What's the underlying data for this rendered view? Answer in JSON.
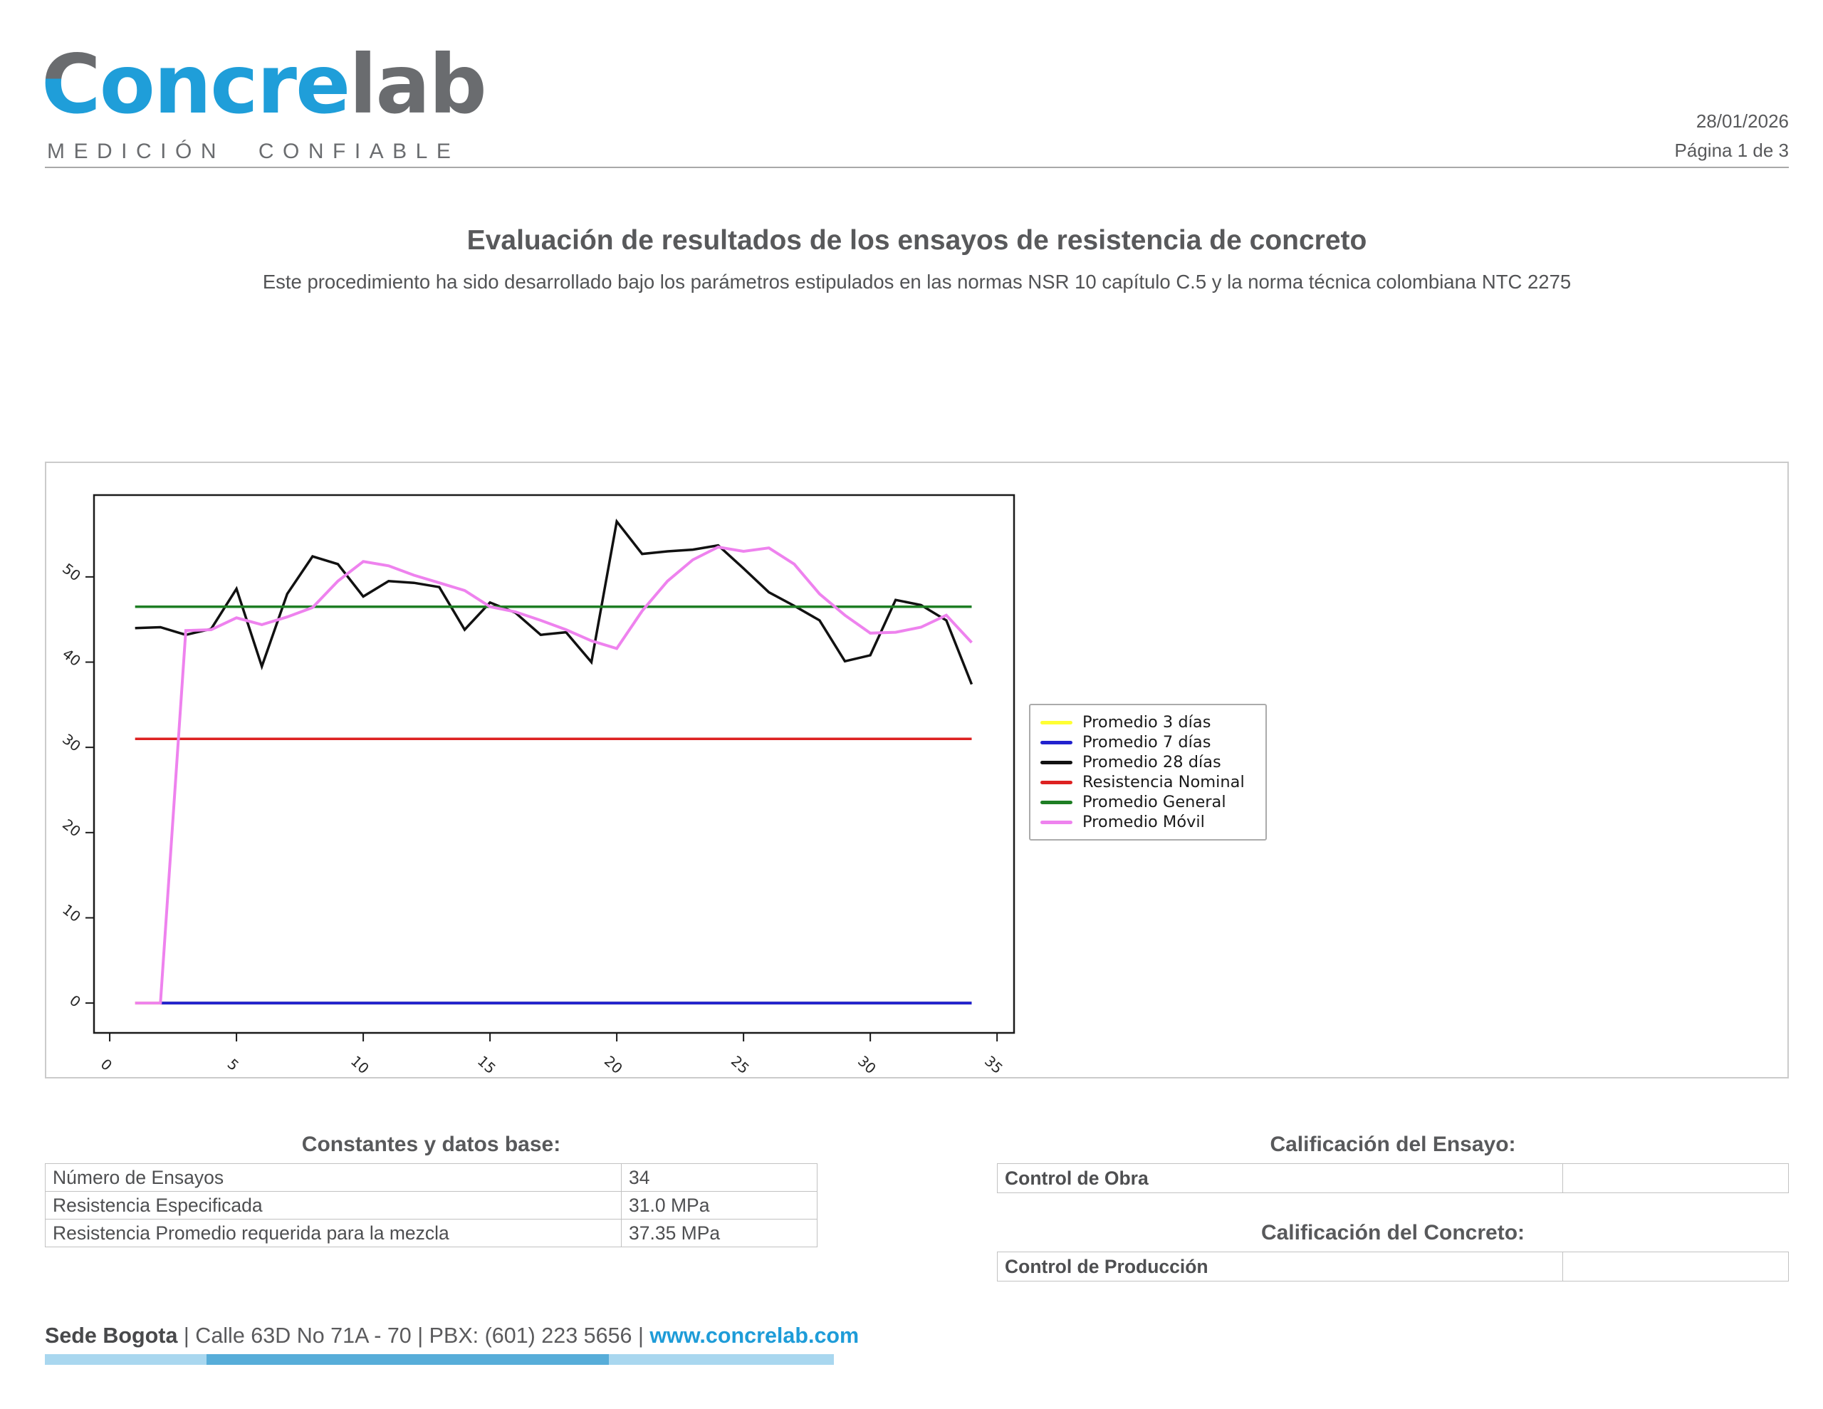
{
  "header": {
    "logo_c": "C",
    "logo_mid": "oncre",
    "logo_end": "lab",
    "tagline": "MEDICIÓN CONFIABLE",
    "date": "28/01/2026",
    "page": "Página 1 de 3"
  },
  "title": "Evaluación de resultados de los ensayos de resistencia de concreto",
  "subtitle": "Este procedimiento ha sido desarrollado bajo los parámetros estipulados en las normas NSR 10 capítulo C.5 y la norma técnica colombiana NTC 2275",
  "colors": {
    "brand_blue": "#1F9ED9",
    "brand_gray": "#6A6C6F",
    "link_blue": "#1E9CD8",
    "footer_bar_light": "#A9D7EF",
    "footer_bar_dark": "#57ADD9"
  },
  "chart_data": {
    "type": "line",
    "title": "",
    "xlabel": "",
    "ylabel": "",
    "grid": false,
    "legend_position": "outside-right",
    "xlim": [
      -0.62,
      35.67
    ],
    "ylim": [
      -3.5,
      59.6
    ],
    "x_ticks": [
      0,
      5,
      10,
      15,
      20,
      25,
      30,
      35
    ],
    "y_ticks": [
      0,
      10,
      20,
      30,
      40,
      50
    ],
    "series": [
      {
        "name": "Promedio 3 días",
        "color": "#FFFF33",
        "width": 4,
        "const": 0,
        "x_range": [
          1,
          34
        ]
      },
      {
        "name": "Promedio 7 días",
        "color": "#2222CE",
        "width": 4,
        "const": 0,
        "x_range": [
          2,
          34
        ]
      },
      {
        "name": "Promedio 28 días",
        "color": "#111111",
        "width": 3.5,
        "x_start": 1,
        "values": [
          44.0,
          44.1,
          43.2,
          43.9,
          48.6,
          39.5,
          48.0,
          52.4,
          51.5,
          47.7,
          49.5,
          49.3,
          48.8,
          43.8,
          47.0,
          45.8,
          43.2,
          43.5,
          40.0,
          56.5,
          52.7,
          53.0,
          53.2,
          53.7,
          51.0,
          48.2,
          46.6,
          44.9,
          40.1,
          40.8,
          47.3,
          46.7,
          44.9,
          37.4
        ]
      },
      {
        "name": "Resistencia Nominal",
        "color": "#DD2222",
        "width": 3.5,
        "const": 31.0,
        "x_range": [
          1,
          34
        ]
      },
      {
        "name": "Promedio General",
        "color": "#1E7E24",
        "width": 3.5,
        "const": 46.5,
        "x_range": [
          1,
          34
        ]
      },
      {
        "name": "Promedio Móvil",
        "color": "#EE82EE",
        "width": 4,
        "x_start": 1,
        "values": [
          0,
          0,
          43.7,
          43.8,
          45.2,
          44.4,
          45.3,
          46.4,
          49.5,
          51.8,
          51.3,
          50.2,
          49.3,
          48.4,
          46.5,
          45.9,
          44.9,
          43.8,
          42.5,
          41.6,
          46.0,
          49.5,
          52.0,
          53.5,
          53.0,
          53.4,
          51.5,
          48.0,
          45.5,
          43.4,
          43.5,
          44.1,
          45.5,
          42.3
        ]
      }
    ]
  },
  "constants_table": {
    "title": "Constantes y datos base:",
    "rows": [
      {
        "label": "Número de Ensayos",
        "value": "34"
      },
      {
        "label": "Resistencia Especificada",
        "value": "31.0 MPa"
      },
      {
        "label": "Resistencia Promedio requerida para la mezcla",
        "value": "37.35 MPa"
      }
    ]
  },
  "ensayo_section": {
    "title": "Calificación del Ensayo:",
    "rows": [
      {
        "label": "Control de Obra",
        "value": ""
      }
    ]
  },
  "concreto_section": {
    "title": "Calificación del Concreto:",
    "rows": [
      {
        "label": "Control de Producción",
        "value": ""
      }
    ]
  },
  "footer": {
    "bold": "Sede Bogota",
    "middle": " | Calle 63D No 71A - 70 | PBX: (601) 223 5656 | ",
    "link": "www.concrelab.com"
  }
}
